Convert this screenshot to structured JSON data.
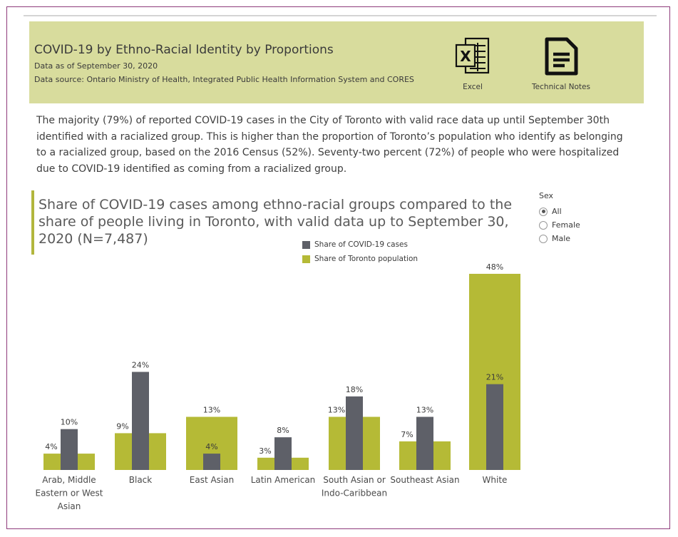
{
  "header": {
    "title": "COVID-19 by Ethno-Racial Identity by Proportions",
    "date_line": "Data as of September 30, 2020",
    "source_line": "Data source: Ontario Ministry of Health, Integrated Public Health Information System and CORES",
    "excel_label": "Excel",
    "notes_label": "Technical Notes"
  },
  "summary": "The majority (79%) of reported COVID-19 cases in the City of Toronto with valid race data up until September 30th identified with a racialized group. This is higher than the proportion of Toronto’s population who identify as belonging to a racialized group, based on the 2016 Census (52%). Seventy-two percent (72%) of people who were hospitalized due to COVID-19 identified as coming from a racialized group.",
  "filter": {
    "label": "Sex",
    "options": [
      "All",
      "Female",
      "Male"
    ],
    "selected": "All"
  },
  "colors": {
    "cases": "#5e6068",
    "population": "#b5ba36",
    "header_bg": "#d8dc9d"
  },
  "chart_data": {
    "type": "bar",
    "title": "Share of COVID-19 cases among ethno-racial groups compared to the share of people living in Toronto, with valid data up to September 30, 2020 (N=7,487)",
    "categories": [
      [
        "Arab, Middle",
        "Eastern or West",
        "Asian"
      ],
      [
        "Black"
      ],
      [
        "East Asian"
      ],
      [
        "Latin American"
      ],
      [
        "South Asian or",
        "Indo-Caribbean"
      ],
      [
        "Southeast Asian"
      ],
      [
        "White"
      ]
    ],
    "series": [
      {
        "name": "Share of COVID-19 cases",
        "values": [
          10,
          24,
          4,
          8,
          18,
          13,
          21
        ],
        "labels": [
          "10%",
          "24%",
          "4%",
          "8%",
          "18%",
          "13%",
          "21%"
        ]
      },
      {
        "name": "Share of Toronto population",
        "values": [
          4,
          9,
          13,
          3,
          13,
          7,
          48
        ],
        "labels": [
          "4%",
          "9%",
          "13%",
          "3%",
          "13%",
          "7%",
          "48%"
        ]
      }
    ],
    "ylim": [
      0,
      48
    ],
    "grid": false,
    "legend": "top-center"
  }
}
